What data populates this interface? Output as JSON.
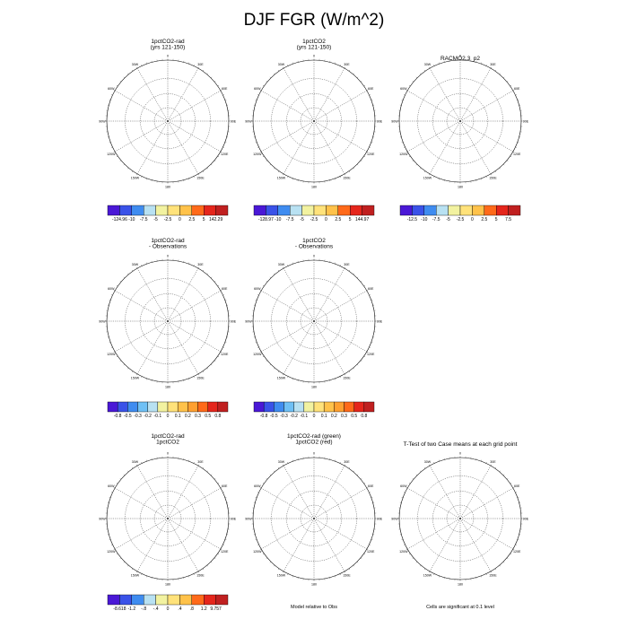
{
  "figure": {
    "title": "DJF FGR (W/m^2)"
  },
  "palettes": {
    "diverging12": [
      "#4a18d6",
      "#3a52e8",
      "#3f8cf0",
      "#6fc0f5",
      "#b8e1f2",
      "#f2f2a0",
      "#ffe27a",
      "#ffc24a",
      "#ffa030",
      "#ff6a1a",
      "#e5261c",
      "#c02020"
    ],
    "land_main": "#f09020",
    "land_edge": "#d43020",
    "land_racmo": "#ffc020",
    "land_diff": "#d43020",
    "ttest_red": "#e00000",
    "ttest_green": "#20cc20",
    "diff3_blue": "#b8d8ee",
    "diff3_yellow": "#f5f0a0"
  },
  "chart_data": [
    {
      "id": "p1",
      "type": "heatmap",
      "title": [
        "1pctCO2-rad",
        "(yrs 121-150)"
      ],
      "projection": "south-polar-stereographic",
      "colorbar": {
        "labels": [
          "-124.96",
          "-10",
          "-7.5",
          "-5",
          "-2.5",
          "0",
          "2.5",
          "5",
          "142.29"
        ]
      }
    },
    {
      "id": "p2",
      "type": "heatmap",
      "title": [
        "1pctCO2",
        "(yrs 121-150)"
      ],
      "projection": "south-polar-stereographic",
      "colorbar": {
        "labels": [
          "-128.97",
          "-10",
          "-7.5",
          "-5",
          "-2.5",
          "0",
          "2.5",
          "5",
          "144.97"
        ]
      }
    },
    {
      "id": "p3",
      "type": "heatmap",
      "title": [
        "RACMO2.3_p2"
      ],
      "projection": "south-polar-stereographic",
      "colorbar": {
        "labels": [
          "-12.5",
          "-10",
          "-7.5",
          "-5",
          "-2.5",
          "0",
          "2.5",
          "5",
          "7.5"
        ]
      }
    },
    {
      "id": "p4",
      "type": "heatmap",
      "title": [
        "1pctCO2-rad",
        "- Observations"
      ],
      "projection": "south-polar-stereographic",
      "colorbar": {
        "labels": [
          "-0.8",
          "-0.5",
          "-0.3",
          "-0.2",
          "-0.1",
          "0",
          "0.1",
          "0.2",
          "0.3",
          "0.5",
          "0.8"
        ]
      }
    },
    {
      "id": "p5",
      "type": "heatmap",
      "title": [
        "1pctCO2",
        "- Observations"
      ],
      "projection": "south-polar-stereographic",
      "colorbar": {
        "labels": [
          "-0.8",
          "-0.5",
          "-0.3",
          "-0.2",
          "-0.1",
          "0",
          "0.1",
          "0.2",
          "0.3",
          "0.5",
          "0.8"
        ]
      }
    },
    {
      "id": "p6",
      "type": "heatmap",
      "title": [
        "1pctCO2-rad",
        "1pctCO2"
      ],
      "projection": "south-polar-stereographic",
      "colorbar": {
        "labels": [
          "-8.618",
          "-1.2",
          "-.8",
          "-.4",
          "0",
          ".4",
          ".8",
          "1.2",
          "9.757"
        ]
      }
    },
    {
      "id": "p7",
      "type": "heatmap",
      "title": [
        "1pctCO2-rad (green)",
        "1pctCO2 (red)"
      ],
      "projection": "south-polar-stereographic",
      "footnote": "Model relative to Obs"
    },
    {
      "id": "p8",
      "type": "heatmap",
      "title": [
        "T-Test of two Case means at each grid point"
      ],
      "projection": "south-polar-stereographic",
      "footnote": "Cells are significant at 0.1 level"
    }
  ],
  "map_ticks": [
    "0",
    "30E",
    "60E",
    "90E",
    "120E",
    "150E",
    "180",
    "150W",
    "120W",
    "90W",
    "60W",
    "30W"
  ]
}
